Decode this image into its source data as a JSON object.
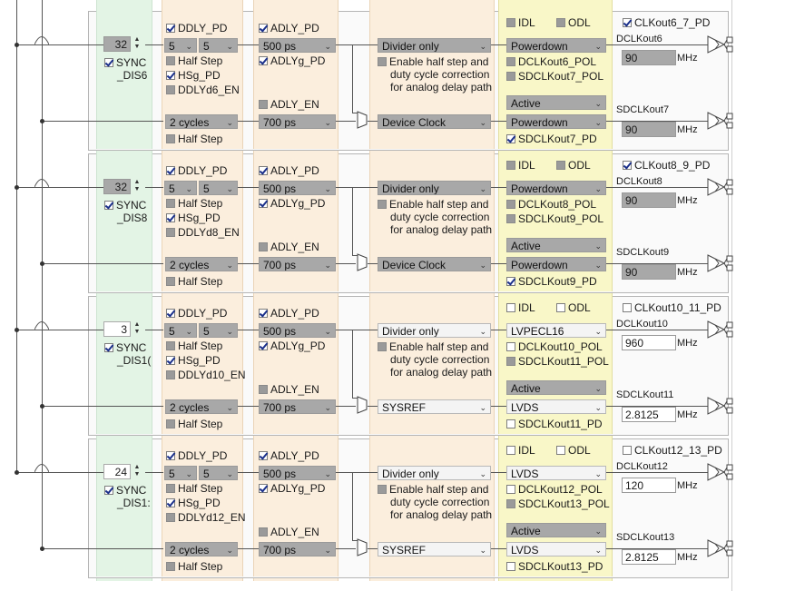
{
  "groups": [
    {
      "sync_value": "32",
      "sync_style": "gray",
      "sync_label_1": "SYNC",
      "sync_label_2": "_DIS6",
      "ddly_pd": "DDLY_PD",
      "div_a": "5",
      "div_b": "5",
      "half_step_1": "Half Step",
      "hsg_pd": "HSg_PD",
      "ddlyd_en": "DDLYd6_EN",
      "cycles": "2 cycles",
      "half_step_2": "Half Step",
      "adly_pd": "ADLY_PD",
      "adly_ps_1": "500 ps",
      "adlyg_pd": "ADLYg_PD",
      "adly_en": "ADLY_EN",
      "adly_ps_2": "700 ps",
      "mode_1": "Divider only",
      "enable_text_1": "Enable half step and",
      "enable_text_2": "duty cycle correction",
      "enable_text_3": "for analog delay path",
      "mode_2": "Device Clock",
      "idl": "IDL",
      "odl": "ODL",
      "fmt_1": "Powerdown",
      "pol_1": "DCLKout6_POL",
      "pol_2": "SDCLKout7_POL",
      "active": "Active",
      "fmt_2": "Powerdown",
      "sd_pd": "SDCLKout7_PD",
      "pair_pd": "CLKout6_7_PD",
      "out_1": "DCLKout6",
      "freq_1": "90",
      "freq_unit_1": "MHz",
      "out_2": "SDCLKout7",
      "freq_2": "90",
      "freq_unit_2": "MHz"
    },
    {
      "sync_value": "32",
      "sync_style": "gray",
      "sync_label_1": "SYNC",
      "sync_label_2": "_DIS8",
      "ddly_pd": "DDLY_PD",
      "div_a": "5",
      "div_b": "5",
      "half_step_1": "Half Step",
      "hsg_pd": "HSg_PD",
      "ddlyd_en": "DDLYd8_EN",
      "cycles": "2 cycles",
      "half_step_2": "Half Step",
      "adly_pd": "ADLY_PD",
      "adly_ps_1": "500 ps",
      "adlyg_pd": "ADLYg_PD",
      "adly_en": "ADLY_EN",
      "adly_ps_2": "700 ps",
      "mode_1": "Divider only",
      "enable_text_1": "Enable half step and",
      "enable_text_2": "duty cycle correction",
      "enable_text_3": "for analog delay path",
      "mode_2": "Device Clock",
      "idl": "IDL",
      "odl": "ODL",
      "fmt_1": "Powerdown",
      "pol_1": "DCLKout8_POL",
      "pol_2": "SDCLKout9_POL",
      "active": "Active",
      "fmt_2": "Powerdown",
      "sd_pd": "SDCLKout9_PD",
      "pair_pd": "CLKout8_9_PD",
      "out_1": "DCLKout8",
      "freq_1": "90",
      "freq_unit_1": "MHz",
      "out_2": "SDCLKout9",
      "freq_2": "90",
      "freq_unit_2": "MHz"
    },
    {
      "sync_value": "3",
      "sync_style": "white",
      "sync_label_1": "SYNC",
      "sync_label_2": "_DIS1(",
      "ddly_pd": "DDLY_PD",
      "div_a": "5",
      "div_b": "5",
      "half_step_1": "Half Step",
      "hsg_pd": "HSg_PD",
      "ddlyd_en": "DDLYd10_EN",
      "cycles": "2 cycles",
      "half_step_2": "Half Step",
      "adly_pd": "ADLY_PD",
      "adly_ps_1": "500 ps",
      "adlyg_pd": "ADLYg_PD",
      "adly_en": "ADLY_EN",
      "adly_ps_2": "700 ps",
      "mode_1": "Divider only",
      "enable_text_1": "Enable half step and",
      "enable_text_2": "duty cycle correction",
      "enable_text_3": "for analog delay path",
      "mode_2": "SYSREF",
      "idl": "IDL",
      "odl": "ODL",
      "fmt_1": "LVPECL16",
      "pol_1": "DCLKout10_POL",
      "pol_2": "SDCLKout11_POL",
      "active": "Active",
      "fmt_2": "LVDS",
      "sd_pd": "SDCLKout11_PD",
      "pair_pd": "CLKout10_11_PD",
      "out_1": "DCLKout10",
      "freq_1": "960",
      "freq_unit_1": "MHz",
      "out_2": "SDCLKout11",
      "freq_2": "2.8125",
      "freq_unit_2": "MHz"
    },
    {
      "sync_value": "24",
      "sync_style": "white",
      "sync_label_1": "SYNC",
      "sync_label_2": "_DIS1:",
      "ddly_pd": "DDLY_PD",
      "div_a": "5",
      "div_b": "5",
      "half_step_1": "Half Step",
      "hsg_pd": "HSg_PD",
      "ddlyd_en": "DDLYd12_EN",
      "cycles": "2 cycles",
      "half_step_2": "Half Step",
      "adly_pd": "ADLY_PD",
      "adly_ps_1": "500 ps",
      "adlyg_pd": "ADLYg_PD",
      "adly_en": "ADLY_EN",
      "adly_ps_2": "700 ps",
      "mode_1": "Divider only",
      "enable_text_1": "Enable half step and",
      "enable_text_2": "duty cycle correction",
      "enable_text_3": "for analog delay path",
      "mode_2": "SYSREF",
      "idl": "IDL",
      "odl": "ODL",
      "fmt_1": "LVDS",
      "pol_1": "DCLKout12_POL",
      "pol_2": "SDCLKout13_POL",
      "active": "Active",
      "fmt_2": "LVDS",
      "sd_pd": "SDCLKout13_PD",
      "pair_pd": "CLKout12_13_PD",
      "out_1": "DCLKout12",
      "freq_1": "120",
      "freq_unit_1": "MHz",
      "out_2": "SDCLKout13",
      "freq_2": "2.8125",
      "freq_unit_2": "MHz"
    }
  ]
}
